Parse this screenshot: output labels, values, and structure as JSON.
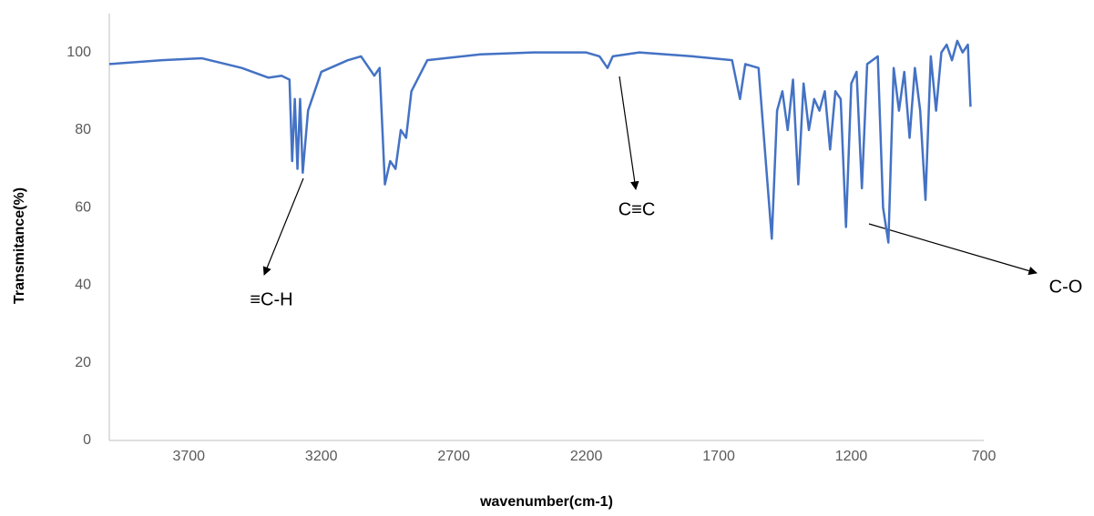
{
  "chart_data": {
    "type": "line",
    "x_label": "wavenumber(cm-1)",
    "y_label": "Transmitance(%)",
    "x": [
      4000,
      3800,
      3650,
      3500,
      3400,
      3350,
      3320,
      3310,
      3300,
      3290,
      3280,
      3270,
      3250,
      3200,
      3100,
      3050,
      3020,
      3000,
      2980,
      2960,
      2940,
      2920,
      2900,
      2880,
      2860,
      2800,
      2600,
      2400,
      2200,
      2150,
      2120,
      2100,
      2000,
      1800,
      1650,
      1620,
      1600,
      1550,
      1500,
      1480,
      1460,
      1440,
      1420,
      1400,
      1380,
      1360,
      1340,
      1320,
      1300,
      1280,
      1260,
      1240,
      1220,
      1200,
      1180,
      1160,
      1140,
      1100,
      1080,
      1060,
      1040,
      1020,
      1000,
      980,
      960,
      940,
      920,
      900,
      880,
      860,
      840,
      820,
      800,
      780,
      760,
      750
    ],
    "series": [
      {
        "name": "Transmitance",
        "color": "#4472c4",
        "values": [
          97,
          98,
          98.5,
          96,
          93.5,
          94,
          93,
          72,
          88,
          70,
          88,
          69,
          85,
          95,
          98,
          99,
          96,
          94,
          96,
          66,
          72,
          70,
          80,
          78,
          90,
          98,
          99.5,
          100,
          100,
          99,
          96,
          99,
          100,
          99,
          98,
          88,
          97,
          96,
          52,
          85,
          90,
          80,
          93,
          66,
          92,
          80,
          88,
          85,
          90,
          75,
          90,
          88,
          55,
          92,
          95,
          65,
          97,
          99,
          60,
          51,
          96,
          85,
          95,
          78,
          96,
          85,
          62,
          99,
          85,
          100,
          102,
          98,
          103,
          100,
          102,
          86
        ]
      }
    ],
    "xlim": [
      4000,
      700
    ],
    "xticks": [
      3700,
      3200,
      2700,
      2200,
      1700,
      1200,
      700
    ],
    "ylim": [
      0,
      110
    ],
    "yticks": [
      0,
      20,
      40,
      60,
      80,
      100
    ],
    "annotations": [
      "≡C-H",
      "C≡C",
      "C-O"
    ]
  }
}
